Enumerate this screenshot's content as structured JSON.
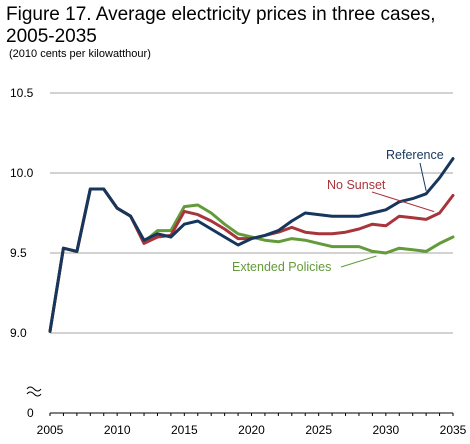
{
  "chart_data": {
    "type": "line",
    "title": "Figure 17. Average electricity prices in three cases, 2005-2035",
    "subtitle": "(2010 cents per kilowatthour)",
    "xlabel": "",
    "ylabel": "",
    "xlim": [
      2005,
      2035
    ],
    "ylim": [
      9.0,
      10.5
    ],
    "axis_break": true,
    "y_zero_label": "0",
    "grid": true,
    "x_ticks": [
      "2005",
      "2010",
      "2015",
      "2020",
      "2025",
      "2030",
      "2035"
    ],
    "y_ticks": [
      "9.0",
      "9.5",
      "10.0",
      "10.5"
    ],
    "x": [
      2005,
      2006,
      2007,
      2008,
      2009,
      2010,
      2011,
      2012,
      2013,
      2014,
      2015,
      2016,
      2017,
      2018,
      2019,
      2020,
      2021,
      2022,
      2023,
      2024,
      2025,
      2026,
      2027,
      2028,
      2029,
      2030,
      2031,
      2032,
      2033,
      2034,
      2035
    ],
    "series": [
      {
        "name": "Reference",
        "color": "#16365c",
        "values": [
          9.01,
          9.53,
          9.51,
          9.9,
          9.9,
          9.78,
          9.73,
          9.58,
          9.62,
          9.6,
          9.68,
          9.7,
          9.65,
          9.6,
          9.55,
          9.59,
          9.61,
          9.64,
          9.7,
          9.75,
          9.74,
          9.73,
          9.73,
          9.73,
          9.75,
          9.77,
          9.82,
          9.84,
          9.87,
          9.97,
          10.09
        ]
      },
      {
        "name": "No Sunset",
        "color": "#a8343c",
        "values": [
          9.01,
          9.53,
          9.51,
          9.9,
          9.9,
          9.78,
          9.73,
          9.56,
          9.6,
          9.61,
          9.76,
          9.74,
          9.7,
          9.65,
          9.59,
          9.59,
          9.61,
          9.63,
          9.66,
          9.63,
          9.62,
          9.62,
          9.63,
          9.65,
          9.68,
          9.67,
          9.73,
          9.72,
          9.71,
          9.75,
          9.86
        ]
      },
      {
        "name": "Extended Policies",
        "color": "#639a3a",
        "values": [
          9.01,
          9.53,
          9.51,
          9.9,
          9.9,
          9.78,
          9.73,
          9.57,
          9.64,
          9.64,
          9.79,
          9.8,
          9.75,
          9.68,
          9.62,
          9.6,
          9.58,
          9.57,
          9.59,
          9.58,
          9.56,
          9.54,
          9.54,
          9.54,
          9.51,
          9.5,
          9.53,
          9.52,
          9.51,
          9.56,
          9.6
        ]
      }
    ]
  }
}
